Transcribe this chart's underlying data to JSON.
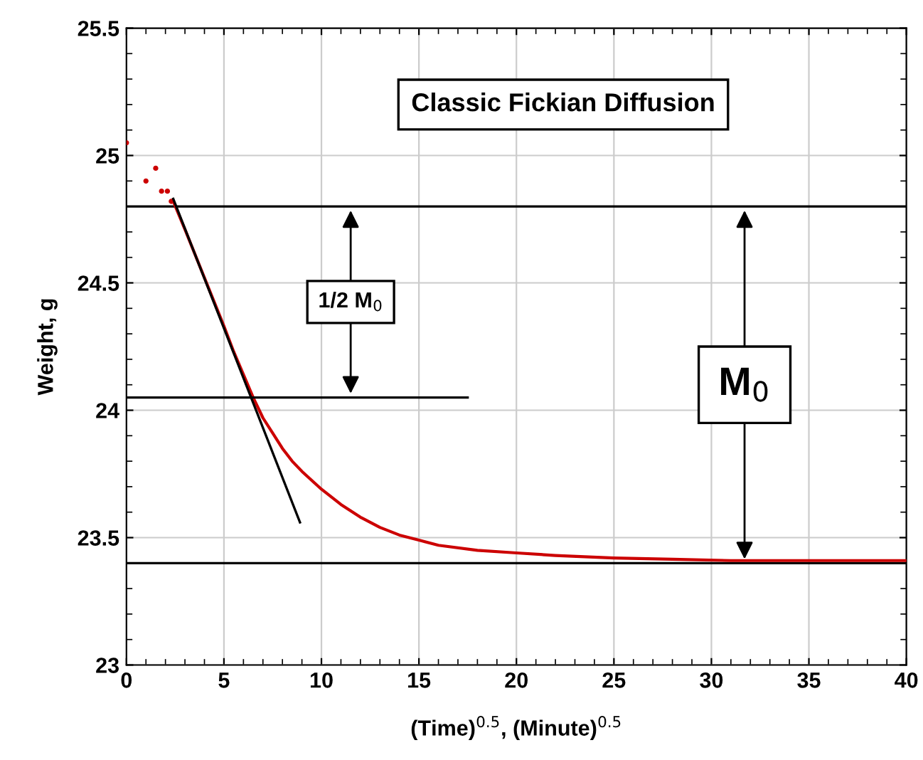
{
  "chart_data": {
    "type": "line",
    "xlabel": "(Time)$^{0.5}$, (Minute)$^{0.5}$",
    "ylabel": "Weight, g",
    "annotations": [
      "Classic Fickian Diffusion",
      {
        "text": "1/2 M$_{0}$",
        "x": 11.5,
        "y": 24.05
      },
      {
        "text": "M$_{0}$",
        "x": 31.7,
        "y": 23.4
      }
    ],
    "xlim": [
      0,
      40
    ],
    "ylim": [
      23,
      25.5
    ],
    "xticks": [
      0,
      5,
      10,
      15,
      20,
      25,
      30,
      35,
      40
    ],
    "yticks": [
      23,
      23.5,
      24,
      24.5,
      25,
      25.5
    ],
    "grid": true,
    "legend": false,
    "ref_lines": [
      {
        "axis": "y",
        "value": 24.8,
        "color": "#000000"
      },
      {
        "axis": "y",
        "value": 23.4,
        "color": "#000000"
      }
    ],
    "series": [
      {
        "type": "scatter",
        "color": "#cc0000",
        "marker": "circle",
        "x": [
          0,
          1,
          1.5,
          1.8,
          2.1,
          2.3
        ],
        "values": [
          25.05,
          24.9,
          24.95,
          24.86,
          24.86,
          24.82
        ]
      },
      {
        "color": "#cc0000",
        "x": [
          2.4,
          3,
          4,
          5,
          5.5,
          6,
          6.5,
          7,
          7.5,
          8,
          8.5,
          9,
          10,
          11,
          12,
          13,
          14,
          15,
          16,
          18,
          20,
          22,
          25,
          28,
          31,
          34,
          37,
          40
        ],
        "values": [
          24.82,
          24.71,
          24.52,
          24.33,
          24.23,
          24.14,
          24.05,
          23.97,
          23.91,
          23.85,
          23.8,
          23.76,
          23.69,
          23.63,
          23.58,
          23.54,
          23.51,
          23.49,
          23.47,
          23.45,
          23.44,
          23.43,
          23.42,
          23.415,
          23.41,
          23.41,
          23.41,
          23.41
        ]
      },
      {
        "color": "#000000",
        "x": [
          2.4,
          8.9
        ],
        "values": [
          24.83,
          23.56
        ]
      },
      {
        "color": "#000000",
        "x": [
          0,
          17.5
        ],
        "values": [
          24.05,
          24.05
        ]
      }
    ]
  }
}
